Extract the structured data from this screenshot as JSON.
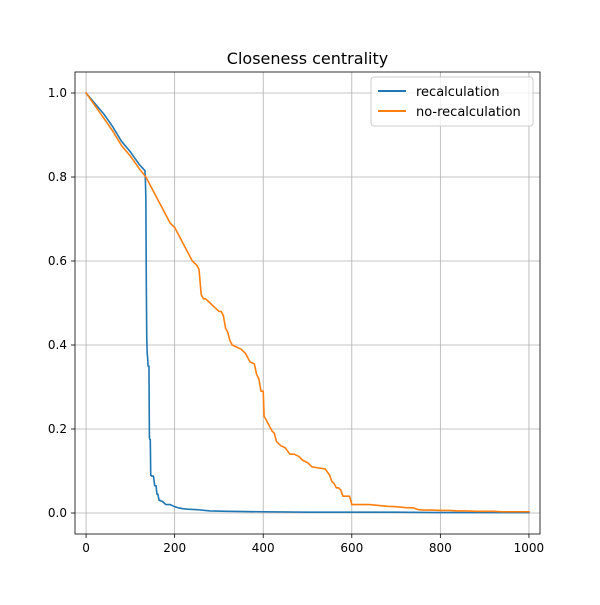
{
  "chart_data": {
    "type": "line",
    "title": "Closeness centrality",
    "xlabel": "",
    "ylabel": "",
    "xlim": [
      -25,
      1025
    ],
    "ylim": [
      -0.05,
      1.05
    ],
    "xticks": [
      0,
      200,
      400,
      600,
      800,
      1000
    ],
    "yticks": [
      0.0,
      0.2,
      0.4,
      0.6,
      0.8,
      1.0
    ],
    "xtick_labels": [
      "0",
      "200",
      "400",
      "600",
      "800",
      "1000"
    ],
    "ytick_labels": [
      "0.0",
      "0.2",
      "0.4",
      "0.6",
      "0.8",
      "1.0"
    ],
    "grid": true,
    "legend_position": "top-right",
    "series": [
      {
        "name": "recalculation",
        "color": "#1f77b4",
        "x": [
          0,
          20,
          40,
          60,
          80,
          100,
          120,
          133,
          134,
          135,
          136,
          137,
          138,
          139,
          140,
          142,
          143,
          144,
          145,
          146,
          147,
          148,
          150,
          152,
          155,
          158,
          160,
          162,
          165,
          168,
          170,
          172,
          175,
          180,
          185,
          190,
          200,
          210,
          220,
          230,
          250,
          280,
          320,
          400,
          500,
          600,
          700,
          800,
          900,
          1000
        ],
        "y": [
          1.0,
          0.975,
          0.95,
          0.92,
          0.885,
          0.86,
          0.83,
          0.815,
          0.79,
          0.75,
          0.55,
          0.42,
          0.38,
          0.37,
          0.35,
          0.35,
          0.18,
          0.175,
          0.175,
          0.09,
          0.09,
          0.088,
          0.088,
          0.088,
          0.065,
          0.065,
          0.045,
          0.045,
          0.03,
          0.03,
          0.028,
          0.028,
          0.025,
          0.02,
          0.02,
          0.02,
          0.015,
          0.012,
          0.01,
          0.009,
          0.008,
          0.005,
          0.004,
          0.003,
          0.002,
          0.002,
          0.002,
          0.001,
          0.001,
          0.001
        ]
      },
      {
        "name": "no-recalculation",
        "color": "#ff7f0e",
        "x": [
          0,
          20,
          40,
          60,
          80,
          100,
          120,
          135,
          140,
          150,
          160,
          170,
          180,
          190,
          200,
          210,
          220,
          230,
          240,
          250,
          255,
          260,
          265,
          270,
          280,
          290,
          300,
          305,
          310,
          315,
          320,
          325,
          330,
          340,
          350,
          355,
          360,
          370,
          380,
          385,
          390,
          395,
          400,
          402,
          405,
          410,
          415,
          420,
          425,
          430,
          440,
          450,
          460,
          470,
          480,
          490,
          500,
          510,
          520,
          540,
          550,
          555,
          560,
          565,
          570,
          575,
          580,
          590,
          595,
          600,
          610,
          620,
          640,
          660,
          680,
          700,
          720,
          740,
          750,
          760,
          780,
          800,
          820,
          840,
          860,
          880,
          900,
          920,
          940,
          960,
          980,
          1000
        ],
        "y": [
          1.0,
          0.97,
          0.94,
          0.91,
          0.875,
          0.85,
          0.82,
          0.8,
          0.79,
          0.77,
          0.75,
          0.73,
          0.71,
          0.69,
          0.68,
          0.66,
          0.64,
          0.62,
          0.6,
          0.59,
          0.58,
          0.52,
          0.51,
          0.51,
          0.5,
          0.49,
          0.48,
          0.48,
          0.47,
          0.44,
          0.43,
          0.41,
          0.4,
          0.395,
          0.39,
          0.385,
          0.38,
          0.36,
          0.355,
          0.33,
          0.32,
          0.29,
          0.29,
          0.23,
          0.225,
          0.215,
          0.205,
          0.195,
          0.19,
          0.17,
          0.16,
          0.155,
          0.14,
          0.14,
          0.135,
          0.125,
          0.12,
          0.11,
          0.108,
          0.105,
          0.09,
          0.075,
          0.07,
          0.06,
          0.06,
          0.055,
          0.04,
          0.04,
          0.04,
          0.02,
          0.02,
          0.02,
          0.02,
          0.018,
          0.016,
          0.015,
          0.013,
          0.012,
          0.008,
          0.007,
          0.007,
          0.006,
          0.006,
          0.005,
          0.005,
          0.004,
          0.004,
          0.004,
          0.003,
          0.003,
          0.003,
          0.003
        ]
      }
    ]
  }
}
